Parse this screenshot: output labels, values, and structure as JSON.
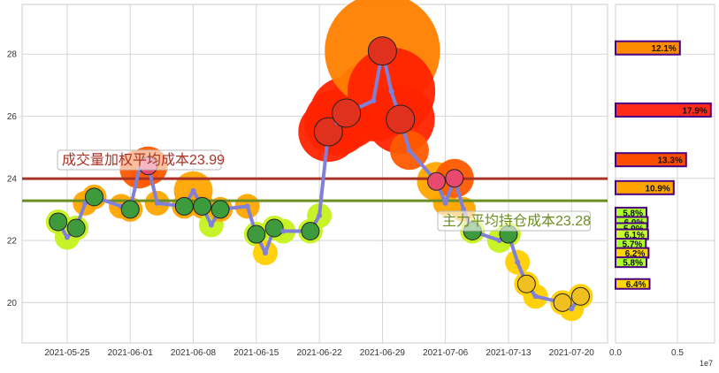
{
  "chart_data": {
    "type": "line",
    "main": {
      "x_ticks": [
        "2021-05-25",
        "2021-06-01",
        "2021-06-08",
        "2021-06-15",
        "2021-06-22",
        "2021-06-29",
        "2021-07-06",
        "2021-07-13",
        "2021-07-20"
      ],
      "y_ticks": [
        "20",
        "22",
        "24",
        "26",
        "28"
      ],
      "ylim": [
        18.7,
        29.6
      ],
      "xlim": [
        "2021-05-20",
        "2021-07-24"
      ],
      "grid": true,
      "series": [
        {
          "points": [
            [
              "2021-05-24",
              22.6
            ],
            [
              "2021-05-25",
              22.1
            ],
            [
              "2021-05-26",
              22.4
            ],
            [
              "2021-05-27",
              23.2
            ],
            [
              "2021-05-28",
              23.4
            ],
            [
              "2021-05-31",
              23.1
            ],
            [
              "2021-06-01",
              23.0
            ],
            [
              "2021-06-02",
              24.3
            ],
            [
              "2021-06-03",
              24.4
            ],
            [
              "2021-06-04",
              23.2
            ],
            [
              "2021-06-07",
              23.1
            ],
            [
              "2021-06-08",
              23.6
            ],
            [
              "2021-06-09",
              23.1
            ],
            [
              "2021-06-10",
              22.5
            ],
            [
              "2021-06-11",
              23.0
            ],
            [
              "2021-06-14",
              23.1
            ],
            [
              "2021-06-15",
              22.2
            ],
            [
              "2021-06-16",
              21.6
            ],
            [
              "2021-06-17",
              22.4
            ],
            [
              "2021-06-18",
              22.3
            ],
            [
              "2021-06-21",
              22.3
            ],
            [
              "2021-06-22",
              22.8
            ],
            [
              "2021-06-23",
              25.5
            ],
            [
              "2021-06-24",
              25.8
            ],
            [
              "2021-06-25",
              26.1
            ],
            [
              "2021-06-28",
              26.5
            ],
            [
              "2021-06-29",
              28.1
            ],
            [
              "2021-06-30",
              26.8
            ],
            [
              "2021-07-01",
              25.9
            ],
            [
              "2021-07-02",
              24.9
            ],
            [
              "2021-07-05",
              23.9
            ],
            [
              "2021-07-06",
              23.2
            ],
            [
              "2021-07-07",
              24.0
            ],
            [
              "2021-07-08",
              23.0
            ],
            [
              "2021-07-09",
              22.3
            ],
            [
              "2021-07-12",
              22.0
            ],
            [
              "2021-07-13",
              22.2
            ],
            [
              "2021-07-14",
              21.3
            ],
            [
              "2021-07-15",
              20.6
            ],
            [
              "2021-07-16",
              20.2
            ],
            [
              "2021-07-19",
              20.0
            ],
            [
              "2021-07-20",
              19.8
            ],
            [
              "2021-07-21",
              20.2
            ]
          ]
        }
      ],
      "lines": [
        {
          "label": "成交量加权平均成本23.99",
          "value": 23.99,
          "color": "#a93226"
        },
        {
          "label": "主力平均持仓成本23.28",
          "value": 23.28,
          "color": "#6b8e23"
        }
      ]
    },
    "side": {
      "type": "bar",
      "x_ticks": [
        "0.0",
        "0.5"
      ],
      "xlim": [
        0,
        0.8
      ],
      "offset_label": "1e7",
      "bars": [
        {
          "label": "12.1%",
          "price": 28.2,
          "value": 0.52,
          "color": "#ff8c00"
        },
        {
          "label": "17.9%",
          "price": 26.2,
          "value": 0.77,
          "color": "#ff2b1a"
        },
        {
          "label": "13.3%",
          "price": 24.6,
          "value": 0.57,
          "color": "#ff4d00"
        },
        {
          "label": "10.9%",
          "price": 23.7,
          "value": 0.47,
          "color": "#ffa500"
        },
        {
          "label": "5.8%",
          "price": 22.9,
          "value": 0.25,
          "color": "#adff2f"
        },
        {
          "label": "6.0%",
          "price": 22.6,
          "value": 0.26,
          "color": "#adff2f"
        },
        {
          "label": "5.9%",
          "price": 22.4,
          "value": 0.255,
          "color": "#adff2f"
        },
        {
          "label": "6.1%",
          "price": 22.2,
          "value": 0.263,
          "color": "#c8ff2f"
        },
        {
          "label": "5.7%",
          "price": 21.9,
          "value": 0.245,
          "color": "#adff2f"
        },
        {
          "label": "6.2%",
          "price": 21.6,
          "value": 0.267,
          "color": "#ffd700"
        },
        {
          "label": "5.8%",
          "price": 21.3,
          "value": 0.25,
          "color": "#adff2f"
        },
        {
          "label": "6.4%",
          "price": 20.6,
          "value": 0.275,
          "color": "#ffd700"
        }
      ]
    }
  }
}
